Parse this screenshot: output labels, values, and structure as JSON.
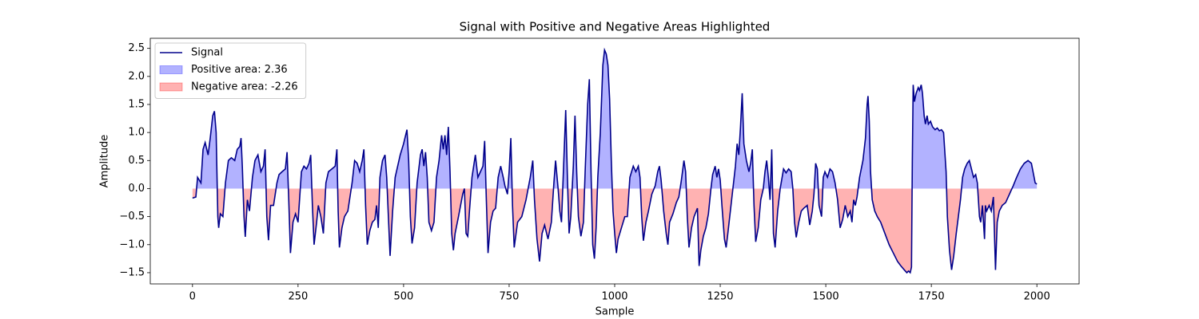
{
  "chart_data": {
    "type": "line",
    "title": "Signal with Positive and Negative Areas Highlighted",
    "xlabel": "Sample",
    "ylabel": "Amplitude",
    "x": [
      0,
      8,
      12,
      20,
      25,
      30,
      37,
      42,
      48,
      52,
      56,
      60,
      62,
      66,
      72,
      78,
      85,
      92,
      100,
      106,
      112,
      115,
      118,
      122,
      125,
      130,
      135,
      142,
      148,
      155,
      162,
      168,
      172,
      176,
      180,
      185,
      192,
      200,
      205,
      212,
      220,
      224,
      228,
      232,
      238,
      244,
      250,
      258,
      264,
      270,
      276,
      280,
      284,
      288,
      294,
      298,
      304,
      310,
      316,
      322,
      330,
      338,
      342,
      345,
      348,
      354,
      360,
      368,
      378,
      384,
      390,
      396,
      402,
      406,
      410,
      414,
      420,
      426,
      432,
      436,
      440,
      444,
      450,
      456,
      460,
      464,
      468,
      474,
      480,
      486,
      492,
      500,
      508,
      512,
      516,
      520,
      526,
      532,
      540,
      544,
      548,
      552,
      556,
      560,
      566,
      572,
      578,
      584,
      590,
      594,
      598,
      602,
      606,
      610,
      614,
      618,
      622,
      630,
      640,
      644,
      648,
      652,
      656,
      662,
      670,
      676,
      682,
      688,
      692,
      696,
      700,
      706,
      712,
      718,
      724,
      730,
      736,
      740,
      746,
      750,
      754,
      758,
      762,
      770,
      780,
      790,
      800,
      806,
      810,
      816,
      822,
      828,
      834,
      842,
      850,
      856,
      860,
      866,
      870,
      874,
      878,
      884,
      888,
      892,
      896,
      902,
      906,
      910,
      914,
      920,
      926,
      930,
      936,
      940,
      944,
      948,
      952,
      956,
      960,
      966,
      972,
      976,
      980,
      984,
      988,
      992,
      996,
      1000,
      1004,
      1008,
      1016,
      1024,
      1030,
      1036,
      1044,
      1050,
      1056,
      1060,
      1064,
      1068,
      1074,
      1080,
      1088,
      1096,
      1102,
      1106,
      1110,
      1116,
      1122,
      1126,
      1130,
      1138,
      1146,
      1152,
      1158,
      1164,
      1168,
      1172,
      1176,
      1182,
      1188,
      1196,
      1200,
      1204,
      1210,
      1216,
      1222,
      1228,
      1232,
      1238,
      1242,
      1246,
      1250,
      1254,
      1260,
      1264,
      1268,
      1274,
      1280,
      1286,
      1290,
      1294,
      1298,
      1302,
      1306,
      1312,
      1318,
      1322,
      1326,
      1330,
      1334,
      1340,
      1346,
      1352,
      1356,
      1360,
      1364,
      1368,
      1372,
      1376,
      1380,
      1386,
      1392,
      1400,
      1406,
      1412,
      1418,
      1422,
      1426,
      1430,
      1436,
      1442,
      1448,
      1456,
      1462,
      1468,
      1472,
      1476,
      1480,
      1484,
      1490,
      1494,
      1498,
      1504,
      1510,
      1516,
      1522,
      1528,
      1534,
      1540,
      1546,
      1552,
      1558,
      1562,
      1566,
      1570,
      1574,
      1580,
      1588,
      1594,
      1598,
      1600,
      1603,
      1606,
      1610,
      1616,
      1622,
      1630,
      1640,
      1650,
      1660,
      1670,
      1678,
      1686,
      1692,
      1696,
      1700,
      1703,
      1705,
      1707,
      1710,
      1714,
      1719,
      1722,
      1726,
      1729,
      1733,
      1736,
      1740,
      1743,
      1748,
      1753,
      1759,
      1764,
      1769,
      1774,
      1779,
      1785,
      1788,
      1793,
      1798,
      1803,
      1809,
      1814,
      1819,
      1824,
      1829,
      1835,
      1840,
      1845,
      1850,
      1855,
      1859,
      1864,
      1867,
      1871,
      1876,
      1878,
      1881,
      1887,
      1892,
      1897,
      1902,
      1906,
      1911,
      1918,
      1926,
      1935,
      1944,
      1952,
      1961,
      1970,
      1979,
      1987,
      1996,
      2000
    ],
    "series": [
      {
        "name": "Signal",
        "color": "#00008b",
        "values": [
          -0.17,
          -0.15,
          0.2,
          0.1,
          0.7,
          0.82,
          0.6,
          0.9,
          1.3,
          1.38,
          1.0,
          -0.5,
          -0.7,
          -0.45,
          -0.5,
          0.1,
          0.5,
          0.55,
          0.5,
          0.7,
          0.75,
          0.9,
          0.4,
          -0.5,
          -0.86,
          -0.2,
          -0.4,
          0.2,
          0.5,
          0.6,
          0.3,
          0.4,
          0.7,
          -0.5,
          -0.92,
          -0.3,
          -0.3,
          0.1,
          0.25,
          0.3,
          0.35,
          0.65,
          -0.2,
          -1.15,
          -0.6,
          -0.45,
          -0.6,
          0.3,
          0.4,
          0.35,
          0.45,
          0.6,
          -0.3,
          -1.0,
          -0.6,
          -0.3,
          -0.5,
          -0.8,
          0.1,
          0.3,
          0.35,
          0.4,
          0.7,
          -0.4,
          -1.05,
          -0.7,
          -0.5,
          -0.4,
          0.1,
          0.5,
          0.45,
          0.3,
          0.5,
          0.7,
          -0.3,
          -1.0,
          -0.75,
          -0.6,
          -0.55,
          -0.3,
          -0.7,
          0.2,
          0.5,
          0.6,
          0.2,
          -0.5,
          -1.2,
          -0.4,
          0.2,
          0.4,
          0.6,
          0.8,
          1.05,
          0.5,
          -0.5,
          -0.98,
          -0.7,
          0.1,
          0.6,
          0.7,
          0.4,
          0.65,
          0.2,
          -0.6,
          -0.75,
          -0.6,
          0.2,
          0.5,
          0.95,
          0.7,
          0.95,
          0.6,
          1.1,
          0.3,
          -0.8,
          -1.1,
          -0.8,
          -0.5,
          -0.1,
          0.0,
          -0.8,
          -0.85,
          -0.4,
          0.2,
          0.6,
          0.2,
          0.3,
          0.4,
          0.85,
          -0.2,
          -1.15,
          -0.6,
          -0.4,
          -0.35,
          0.2,
          0.4,
          0.2,
          0.05,
          -0.1,
          0.3,
          0.9,
          -0.3,
          -1.05,
          -0.6,
          -0.5,
          -0.2,
          0.2,
          0.5,
          -0.2,
          -0.9,
          -1.3,
          -0.8,
          -0.65,
          -0.9,
          -0.6,
          0.1,
          0.5,
          0.0,
          -0.4,
          -0.6,
          0.2,
          1.4,
          0.2,
          -0.8,
          -0.5,
          0.4,
          1.3,
          0.3,
          -0.5,
          -0.85,
          -0.6,
          0.3,
          1.5,
          1.95,
          0.3,
          -1.0,
          -1.25,
          -0.7,
          0.2,
          1.0,
          2.2,
          2.47,
          2.4,
          2.2,
          1.6,
          0.5,
          -0.4,
          -0.8,
          -1.15,
          -0.9,
          -0.7,
          -0.5,
          -0.5,
          0.2,
          0.4,
          0.3,
          0.4,
          0.2,
          -0.5,
          -0.93,
          -0.6,
          -0.4,
          -0.1,
          0.05,
          0.3,
          0.4,
          0.15,
          -0.4,
          -0.8,
          -1.0,
          -0.6,
          -0.45,
          -0.25,
          -0.15,
          0.15,
          0.5,
          0.3,
          -0.5,
          -1.05,
          -0.7,
          -0.5,
          -0.35,
          -1.38,
          -1.1,
          -0.85,
          -0.7,
          -0.45,
          0.0,
          0.25,
          0.4,
          0.2,
          0.35,
          0.15,
          -0.3,
          -0.9,
          -1.05,
          -0.8,
          -0.4,
          0.0,
          0.4,
          0.8,
          0.6,
          1.1,
          1.7,
          0.8,
          0.5,
          0.3,
          0.45,
          0.7,
          -0.3,
          -0.95,
          -0.7,
          -0.2,
          0.0,
          0.3,
          0.5,
          0.2,
          -0.2,
          0.7,
          -0.8,
          -1.05,
          -0.4,
          0.0,
          0.35,
          0.28,
          0.35,
          0.3,
          0.0,
          -0.6,
          -0.87,
          -0.6,
          -0.4,
          -0.35,
          -0.3,
          -0.65,
          -0.4,
          -0.1,
          0.45,
          0.35,
          -0.3,
          -0.5,
          0.2,
          0.3,
          0.2,
          0.35,
          0.3,
          0.1,
          -0.2,
          -0.7,
          -0.55,
          -0.3,
          -0.5,
          -0.4,
          -0.6,
          -0.2,
          -0.3,
          -0.15,
          0.2,
          0.5,
          0.9,
          1.5,
          1.65,
          1.2,
          0.3,
          -0.2,
          -0.4,
          -0.5,
          -0.6,
          -0.8,
          -1.0,
          -1.15,
          -1.3,
          -1.38,
          -1.45,
          -1.5,
          -1.47,
          -1.5,
          -1.4,
          0.5,
          1.85,
          1.55,
          1.7,
          1.8,
          1.75,
          1.85,
          1.7,
          1.3,
          1.15,
          1.3,
          1.15,
          1.2,
          1.1,
          1.05,
          1.08,
          1.03,
          1.05,
          1.0,
          0.3,
          -0.5,
          -1.1,
          -1.45,
          -1.2,
          -0.8,
          -0.5,
          -0.2,
          0.2,
          0.35,
          0.45,
          0.5,
          0.35,
          0.2,
          0.25,
          0.1,
          -0.5,
          -0.6,
          -0.3,
          -0.9,
          -0.3,
          -0.4,
          -0.3,
          -0.4,
          -0.15,
          -1.45,
          -0.6,
          -0.4,
          -0.3,
          -0.25,
          -0.1,
          0.05,
          0.2,
          0.35,
          0.45,
          0.5,
          0.45,
          0.1,
          0.08
        ]
      }
    ],
    "fills": [
      {
        "name": "Positive area: 2.36",
        "color": "#0000ff",
        "alpha": 0.3,
        "region": "positive"
      },
      {
        "name": "Negative area: -2.26",
        "color": "#ff0000",
        "alpha": 0.3,
        "region": "negative"
      }
    ],
    "xlim": [
      -100,
      2100
    ],
    "ylim": [
      -1.7,
      2.68
    ],
    "xticks": [
      0,
      250,
      500,
      750,
      1000,
      1250,
      1500,
      1750,
      2000
    ],
    "yticks": [
      {
        "value": -1.5,
        "label": "−1.5"
      },
      {
        "value": -1,
        "label": "−1.0"
      },
      {
        "value": -0.5,
        "label": "−0.5"
      },
      {
        "value": 0,
        "label": "0.0"
      },
      0.5,
      {
        "value": 1,
        "label": "1.0"
      },
      1.5,
      {
        "value": 2,
        "label": "2.0"
      },
      2.5
    ],
    "legend": "upper left"
  }
}
